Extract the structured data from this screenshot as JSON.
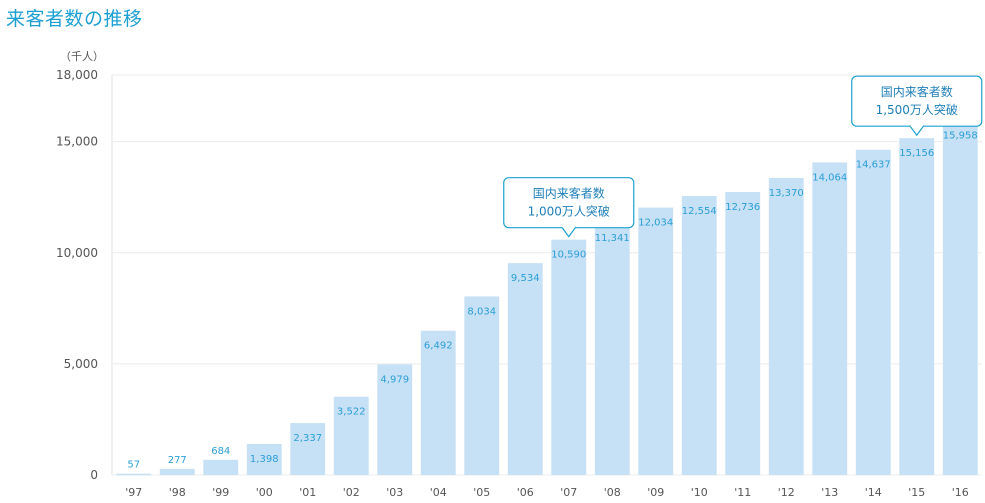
{
  "title": "来客者数の推移",
  "chart_data": {
    "type": "bar",
    "unit_label": "（千人）",
    "categories": [
      "'97",
      "'98",
      "'99",
      "'00",
      "'01",
      "'02",
      "'03",
      "'04",
      "'05",
      "'06",
      "'07",
      "'08",
      "'09",
      "'10",
      "'11",
      "'12",
      "'13",
      "'14",
      "'15",
      "'16"
    ],
    "values": [
      57,
      277,
      684,
      1398,
      2337,
      3522,
      4979,
      6492,
      8034,
      9534,
      10590,
      11341,
      12034,
      12554,
      12736,
      13370,
      14064,
      14637,
      15156,
      15958
    ],
    "value_labels": [
      "57",
      "277",
      "684",
      "1,398",
      "2,337",
      "3,522",
      "4,979",
      "6,492",
      "8,034",
      "9,534",
      "10,590",
      "11,341",
      "12,034",
      "12,554",
      "12,736",
      "13,370",
      "14,064",
      "14,637",
      "15,156",
      "15,958"
    ],
    "y_ticks": [
      0,
      5000,
      10000,
      15000,
      18000
    ],
    "y_tick_labels": [
      "0",
      "5,000",
      "10,000",
      "15,000",
      "18,000"
    ],
    "ylim": [
      0,
      18000
    ],
    "grid": true,
    "bar_color": "#c6e0f5",
    "label_color": "#2b9fd6",
    "accent": "#1ea0d2",
    "annotations": [
      {
        "category": "'07",
        "lines": [
          "国内来客者数",
          "1,000万人突破"
        ]
      },
      {
        "category": "'15",
        "lines": [
          "国内来客者数",
          "1,500万人突破"
        ]
      }
    ]
  }
}
